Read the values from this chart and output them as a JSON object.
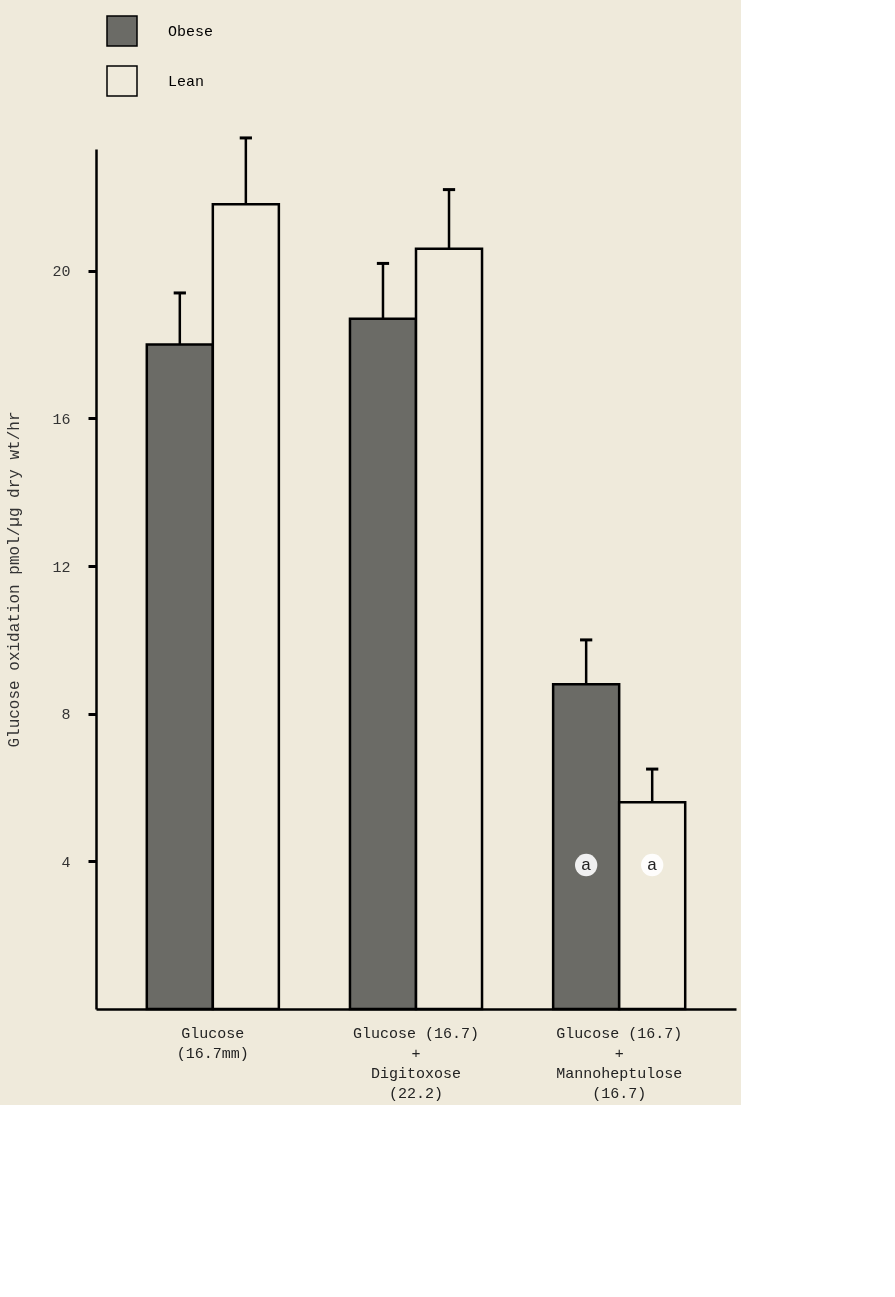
{
  "chart_data": {
    "type": "bar",
    "ylabel": "Glucose oxidation pmol/µg dry wt/hr",
    "categories": [
      "Glucose\n(16.7mm)",
      "Glucose (16.7)\n+\nDigitoxose\n(22.2)",
      "Glucose (16.7)\n+\nMannoheptulose\n(16.7)"
    ],
    "series": [
      {
        "name": "Obese",
        "color": "#6b6b66",
        "values": [
          18.0,
          18.7,
          8.8
        ],
        "errors": [
          [
            18.0,
            19.4
          ],
          [
            18.7,
            20.2
          ],
          [
            8.8,
            10.0
          ]
        ]
      },
      {
        "name": "Lean",
        "color": "#efeadb",
        "values": [
          21.8,
          20.6,
          5.6
        ],
        "errors": [
          [
            21.8,
            23.6
          ],
          [
            20.6,
            22.2
          ],
          [
            5.6,
            6.5
          ]
        ]
      }
    ],
    "ylim": [
      0,
      23.3
    ],
    "yticks": [
      4,
      8,
      12,
      16,
      20
    ],
    "annotations": [
      {
        "text": "a",
        "x": "Glucose (16.7)\n+\nMannoheptulose\n(16.7)",
        "y": 3.9
      },
      {
        "text": "a",
        "x": "Glucose (16.7)\n+\nMannoheptulose\n(16.7)",
        "y": 3.9
      }
    ],
    "legend": "top left",
    "grid": false
  }
}
